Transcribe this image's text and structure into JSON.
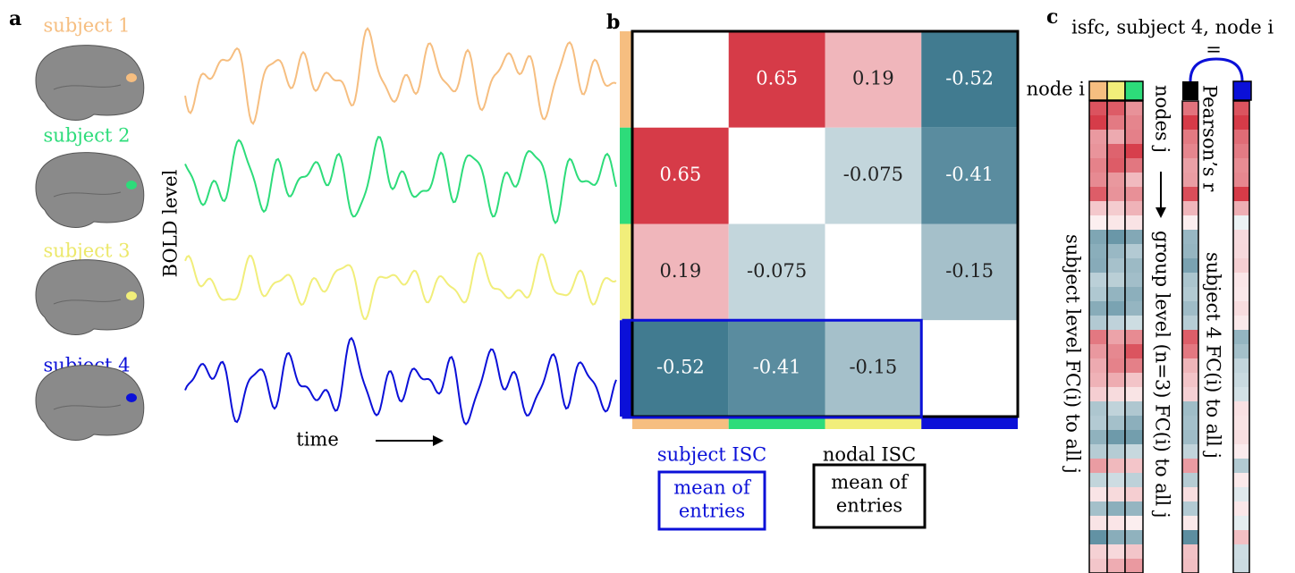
{
  "panel_a": {
    "label": "a",
    "subjects": [
      "subject 1",
      "subject 2",
      "subject 3",
      "subject 4"
    ],
    "y_axis": "BOLD level",
    "x_axis": "time"
  },
  "panel_b": {
    "label": "b",
    "matrix": [
      [
        null,
        0.65,
        0.19,
        -0.52
      ],
      [
        0.65,
        null,
        -0.075,
        -0.41
      ],
      [
        0.19,
        -0.075,
        null,
        -0.15
      ],
      [
        -0.52,
        -0.41,
        -0.15,
        null
      ]
    ],
    "subject_isc": {
      "title": "subject ISC",
      "box_lines": [
        "mean of",
        "entries"
      ]
    },
    "nodal_isc": {
      "title": "nodal ISC",
      "box_lines": [
        "mean of",
        "entries"
      ]
    }
  },
  "panel_c": {
    "label": "c",
    "title": "isfc, subject 4, node i",
    "equals": "=",
    "node_label": "node i",
    "pearson": "Pearson’s r",
    "nodes_j": "nodes j",
    "group_label": "group level (n=3) FC(i) to all j",
    "subject4_label": "subject 4 FC(i) to all j",
    "subject_level_label": "subject level FC(i) to all j"
  }
}
